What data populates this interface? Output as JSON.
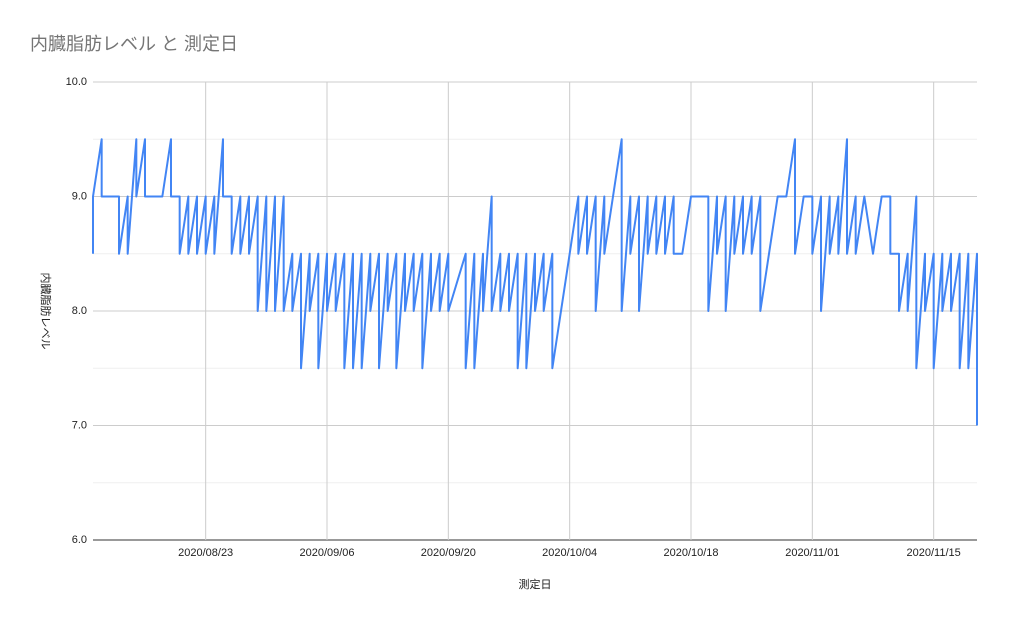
{
  "chart_data": {
    "type": "line",
    "title": "内臓脂肪レベル と 測定日",
    "xlabel": "測定日",
    "ylabel": "内臓脂肪レベル",
    "x": [
      "2020/08/10",
      "2020/08/10",
      "2020/08/11",
      "2020/08/11",
      "2020/08/12",
      "2020/08/13",
      "2020/08/13",
      "2020/08/14",
      "2020/08/14",
      "2020/08/15",
      "2020/08/15",
      "2020/08/16",
      "2020/08/16",
      "2020/08/17",
      "2020/08/18",
      "2020/08/19",
      "2020/08/19",
      "2020/08/20",
      "2020/08/20",
      "2020/08/21",
      "2020/08/21",
      "2020/08/22",
      "2020/08/22",
      "2020/08/23",
      "2020/08/23",
      "2020/08/24",
      "2020/08/24",
      "2020/08/25",
      "2020/08/25",
      "2020/08/26",
      "2020/08/26",
      "2020/08/27",
      "2020/08/27",
      "2020/08/28",
      "2020/08/28",
      "2020/08/29",
      "2020/08/29",
      "2020/08/30",
      "2020/08/30",
      "2020/08/31",
      "2020/08/31",
      "2020/09/01",
      "2020/09/01",
      "2020/09/02",
      "2020/09/02",
      "2020/09/03",
      "2020/09/03",
      "2020/09/04",
      "2020/09/04",
      "2020/09/05",
      "2020/09/05",
      "2020/09/06",
      "2020/09/06",
      "2020/09/07",
      "2020/09/07",
      "2020/09/08",
      "2020/09/08",
      "2020/09/09",
      "2020/09/09",
      "2020/09/10",
      "2020/09/10",
      "2020/09/11",
      "2020/09/11",
      "2020/09/12",
      "2020/09/12",
      "2020/09/13",
      "2020/09/13",
      "2020/09/14",
      "2020/09/14",
      "2020/09/15",
      "2020/09/15",
      "2020/09/16",
      "2020/09/16",
      "2020/09/17",
      "2020/09/17",
      "2020/09/18",
      "2020/09/18",
      "2020/09/19",
      "2020/09/19",
      "2020/09/20",
      "2020/09/20",
      "2020/09/22",
      "2020/09/22",
      "2020/09/23",
      "2020/09/23",
      "2020/09/24",
      "2020/09/24",
      "2020/09/25",
      "2020/09/25",
      "2020/09/26",
      "2020/09/26",
      "2020/09/27",
      "2020/09/27",
      "2020/09/28",
      "2020/09/28",
      "2020/09/29",
      "2020/09/29",
      "2020/09/30",
      "2020/09/30",
      "2020/10/01",
      "2020/10/01",
      "2020/10/02",
      "2020/10/02",
      "2020/10/04",
      "2020/10/05",
      "2020/10/05",
      "2020/10/06",
      "2020/10/06",
      "2020/10/07",
      "2020/10/07",
      "2020/10/08",
      "2020/10/08",
      "2020/10/10",
      "2020/10/10",
      "2020/10/11",
      "2020/10/11",
      "2020/10/12",
      "2020/10/12",
      "2020/10/13",
      "2020/10/13",
      "2020/10/14",
      "2020/10/14",
      "2020/10/15",
      "2020/10/15",
      "2020/10/16",
      "2020/10/16",
      "2020/10/17",
      "2020/10/18",
      "2020/10/20",
      "2020/10/20",
      "2020/10/21",
      "2020/10/21",
      "2020/10/22",
      "2020/10/22",
      "2020/10/23",
      "2020/10/23",
      "2020/10/24",
      "2020/10/24",
      "2020/10/25",
      "2020/10/25",
      "2020/10/26",
      "2020/10/26",
      "2020/10/28",
      "2020/10/29",
      "2020/10/30",
      "2020/10/30",
      "2020/10/31",
      "2020/11/01",
      "2020/11/01",
      "2020/11/02",
      "2020/11/02",
      "2020/11/03",
      "2020/11/03",
      "2020/11/04",
      "2020/11/04",
      "2020/11/05",
      "2020/11/05",
      "2020/11/06",
      "2020/11/06",
      "2020/11/07",
      "2020/11/08",
      "2020/11/09",
      "2020/11/10",
      "2020/11/10",
      "2020/11/11",
      "2020/11/11",
      "2020/11/12",
      "2020/11/12",
      "2020/11/13",
      "2020/11/13",
      "2020/11/14",
      "2020/11/14",
      "2020/11/15",
      "2020/11/15",
      "2020/11/16",
      "2020/11/16",
      "2020/11/17",
      "2020/11/17",
      "2020/11/18",
      "2020/11/18",
      "2020/11/19",
      "2020/11/19",
      "2020/11/20",
      "2020/11/20"
    ],
    "series": [
      {
        "name": "内臓脂肪レベル",
        "color": "#4285f4",
        "values": [
          8.5,
          9.0,
          9.5,
          9.0,
          9.0,
          9.0,
          8.5,
          9.0,
          8.5,
          9.5,
          9.0,
          9.5,
          9.0,
          9.0,
          9.0,
          9.5,
          9.0,
          9.0,
          8.5,
          9.0,
          8.5,
          9.0,
          8.5,
          9.0,
          8.5,
          9.0,
          8.5,
          9.5,
          9.0,
          9.0,
          8.5,
          9.0,
          8.5,
          9.0,
          8.5,
          9.0,
          8.0,
          9.0,
          8.0,
          9.0,
          8.0,
          9.0,
          8.0,
          8.5,
          8.0,
          8.5,
          7.5,
          8.5,
          8.0,
          8.5,
          7.5,
          8.5,
          8.0,
          8.5,
          8.0,
          8.5,
          7.5,
          8.5,
          7.5,
          8.5,
          7.5,
          8.5,
          8.0,
          8.5,
          7.5,
          8.5,
          8.0,
          8.5,
          7.5,
          8.5,
          8.0,
          8.5,
          8.0,
          8.5,
          7.5,
          8.5,
          8.0,
          8.5,
          8.0,
          8.5,
          8.0,
          8.5,
          7.5,
          8.5,
          7.5,
          8.5,
          8.0,
          9.0,
          8.0,
          8.5,
          8.0,
          8.5,
          8.0,
          8.5,
          7.5,
          8.5,
          7.5,
          8.5,
          8.0,
          8.5,
          8.0,
          8.5,
          7.5,
          8.5,
          9.0,
          8.5,
          9.0,
          8.5,
          9.0,
          8.0,
          9.0,
          8.5,
          9.5,
          8.0,
          9.0,
          8.5,
          9.0,
          8.0,
          9.0,
          8.5,
          9.0,
          8.5,
          9.0,
          8.5,
          9.0,
          8.5,
          8.5,
          9.0,
          9.0,
          8.0,
          9.0,
          8.5,
          9.0,
          8.0,
          9.0,
          8.5,
          9.0,
          8.5,
          9.0,
          8.5,
          9.0,
          8.0,
          9.0,
          9.0,
          9.5,
          8.5,
          9.0,
          9.0,
          8.5,
          9.0,
          8.0,
          9.0,
          8.5,
          9.0,
          8.5,
          9.5,
          8.5,
          9.0,
          8.5,
          9.0,
          8.5,
          9.0,
          9.0,
          8.5,
          8.5,
          8.0,
          8.5,
          8.0,
          9.0,
          7.5,
          8.5,
          8.0,
          8.5,
          7.5,
          8.5,
          8.0,
          8.5,
          8.0,
          8.5,
          7.5,
          8.5,
          7.5,
          8.5,
          7.0
        ]
      }
    ],
    "xlim": [
      "2020/08/10",
      "2020/11/20"
    ],
    "xticks": [
      "2020/08/23",
      "2020/09/06",
      "2020/09/20",
      "2020/10/04",
      "2020/10/18",
      "2020/11/01",
      "2020/11/15"
    ],
    "ylim": [
      6,
      10
    ],
    "yticks": [
      {
        "value": 6,
        "label": "6.0"
      },
      {
        "value": 7,
        "label": "7.0"
      },
      {
        "value": 8,
        "label": "8.0"
      },
      {
        "value": 9,
        "label": "9.0"
      },
      {
        "value": 10,
        "label": "10.0"
      }
    ],
    "grid": true
  }
}
